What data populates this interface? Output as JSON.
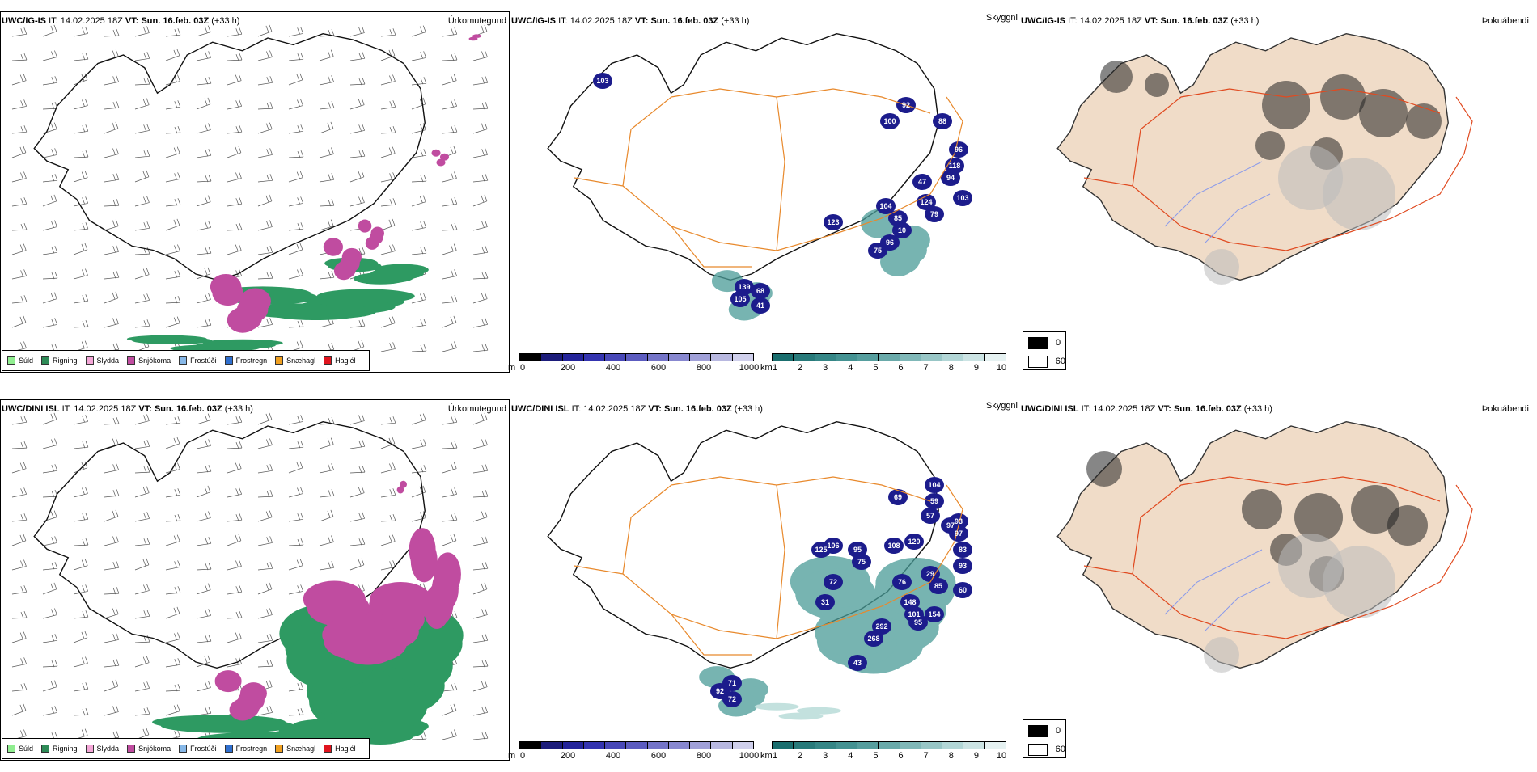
{
  "rows": [
    {
      "model": "UWC/IG-IS",
      "it_label": "IT:",
      "it_value": "14.02.2025 18Z",
      "vt_label": "VT:",
      "vt_value": "Sun. 16.feb. 03Z",
      "lead": "(+33 h)",
      "panel_titles": [
        "Úrkomutegund",
        "Skyggni",
        "Þokuábendi"
      ],
      "labels": [
        "103",
        "100",
        "92",
        "88",
        "96",
        "118",
        "94",
        "47",
        "79",
        "124",
        "103",
        "123",
        "104",
        "85",
        "10",
        "96",
        "75",
        "139",
        "105",
        "68",
        "41"
      ]
    },
    {
      "model": "UWC/DINI ISL",
      "it_label": "IT:",
      "it_value": "14.02.2025 18Z",
      "vt_label": "VT:",
      "vt_value": "Sun. 16.feb. 03Z",
      "lead": "(+33 h)",
      "panel_titles": [
        "Úrkomutegund",
        "Skyggni",
        "Þokuábendi"
      ],
      "labels": [
        "104",
        "69",
        "59",
        "57",
        "93",
        "97",
        "97",
        "83",
        "93",
        "125",
        "106",
        "95",
        "108",
        "120",
        "75",
        "72",
        "76",
        "29",
        "85",
        "60",
        "31",
        "148",
        "101",
        "154",
        "95",
        "292",
        "268",
        "43",
        "92",
        "71",
        "72"
      ]
    }
  ],
  "precip_legend": [
    {
      "label": "Súld",
      "color": "#90ee90"
    },
    {
      "label": "Rigning",
      "color": "#2e8b57"
    },
    {
      "label": "Slydda",
      "color": "#f4a6d7"
    },
    {
      "label": "Snjókoma",
      "color": "#c04ca0"
    },
    {
      "label": "Frostúði",
      "color": "#87b8e8"
    },
    {
      "label": "Frostregn",
      "color": "#2f6fcf"
    },
    {
      "label": "Snæhagl",
      "color": "#f0a020"
    },
    {
      "label": "Haglél",
      "color": "#e0141e"
    }
  ],
  "ceiling_bar": {
    "unit": "m",
    "ticks": [
      "0",
      "200",
      "400",
      "600",
      "800",
      "1000"
    ],
    "colors": [
      "#000000",
      "#1c1c7a",
      "#24249a",
      "#3434b0",
      "#4848b8",
      "#5c5cc0",
      "#7474c8",
      "#8888d0",
      "#a0a0d8",
      "#b8b8e0",
      "#d0d0ec"
    ]
  },
  "visibility_bar": {
    "unit": "km",
    "ticks": [
      "1",
      "2",
      "3",
      "4",
      "5",
      "6",
      "7",
      "8",
      "9",
      "10"
    ],
    "colors": [
      "#1a6e6e",
      "#287a7a",
      "#358686",
      "#449292",
      "#569e9e",
      "#6aaaaa",
      "#80b8b8",
      "#98c6c6",
      "#b2d6d6",
      "#cce4e4",
      "#e6f2f2"
    ]
  },
  "fog_legend": [
    "0",
    "60"
  ],
  "colors": {
    "rain": "#2e9a62",
    "snow": "#c04ca0",
    "roads": "#e8892c",
    "land_fog": "#f0dcc8",
    "roads_fog": "#e04a20",
    "rivers": "#8a9aea",
    "ceiling": "#1c1c8c",
    "visibility": "#4a9c98"
  }
}
